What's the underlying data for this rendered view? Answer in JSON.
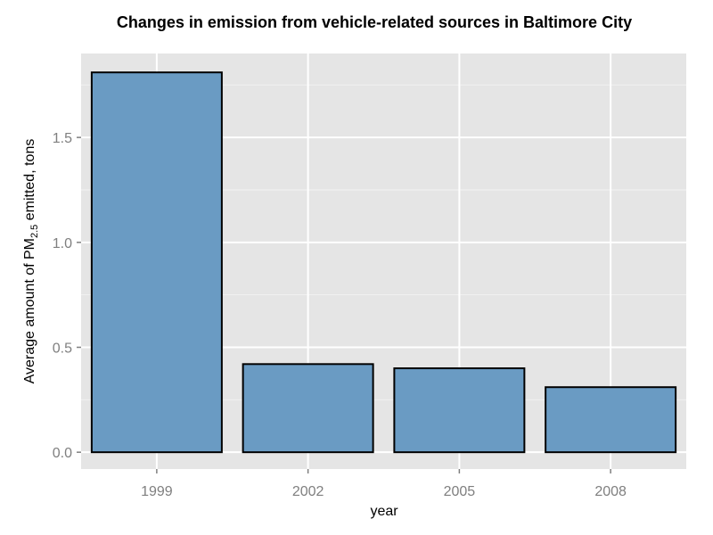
{
  "chart_data": {
    "type": "bar",
    "title": "Changes in emission from vehicle-related sources in Baltimore City",
    "xlabel": "year",
    "ylabel": {
      "prefix": "Average amount of PM",
      "subscript": "2.5",
      "suffix": " emitted, tons"
    },
    "categories": [
      "1999",
      "2002",
      "2005",
      "2008"
    ],
    "values": [
      1.81,
      0.42,
      0.4,
      0.31
    ],
    "ylim": [
      -0.08,
      1.9
    ],
    "yticks": [
      0.0,
      0.5,
      1.0,
      1.5
    ],
    "ytick_labels": [
      "0.0",
      "0.5",
      "1.0",
      "1.5"
    ],
    "grid": true,
    "legend": "none",
    "colors": {
      "bar_fill": "#6a9bc3",
      "bar_stroke": "#000000",
      "panel_background": "#e5e5e5",
      "grid_major": "#ffffff",
      "grid_minor": "#f2f2f2",
      "tick_label": "#7f7f7f"
    }
  }
}
